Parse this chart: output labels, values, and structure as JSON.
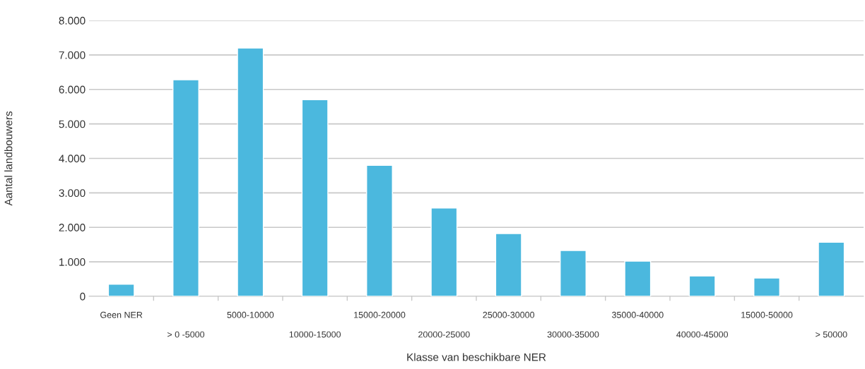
{
  "chart_data": {
    "type": "bar",
    "xlabel": "Klasse van beschikbare NER",
    "ylabel": "Aantal landbouwers",
    "categories": [
      "Geen NER",
      "> 0 -5000",
      "5000-10000",
      "10000-15000",
      "15000-20000",
      "20000-25000",
      "25000-30000",
      "30000-35000",
      "35000-40000",
      "40000-45000",
      "15000-50000",
      "> 50000"
    ],
    "values": [
      350,
      6280,
      7200,
      5700,
      3800,
      2560,
      1820,
      1330,
      1020,
      590,
      530,
      1570
    ],
    "color": "#4bb8de",
    "ylim": [
      0,
      8000
    ],
    "yticks": [
      {
        "value": 0,
        "label": "0"
      },
      {
        "value": 1000,
        "label": "1.000"
      },
      {
        "value": 2000,
        "label": "2.000"
      },
      {
        "value": 3000,
        "label": "3.000"
      },
      {
        "value": 4000,
        "label": "4.000"
      },
      {
        "value": 5000,
        "label": "5.000"
      },
      {
        "value": 6000,
        "label": "6.000"
      },
      {
        "value": 7000,
        "label": "7.000"
      },
      {
        "value": 8000,
        "label": "8.000"
      }
    ],
    "grid": "y"
  }
}
